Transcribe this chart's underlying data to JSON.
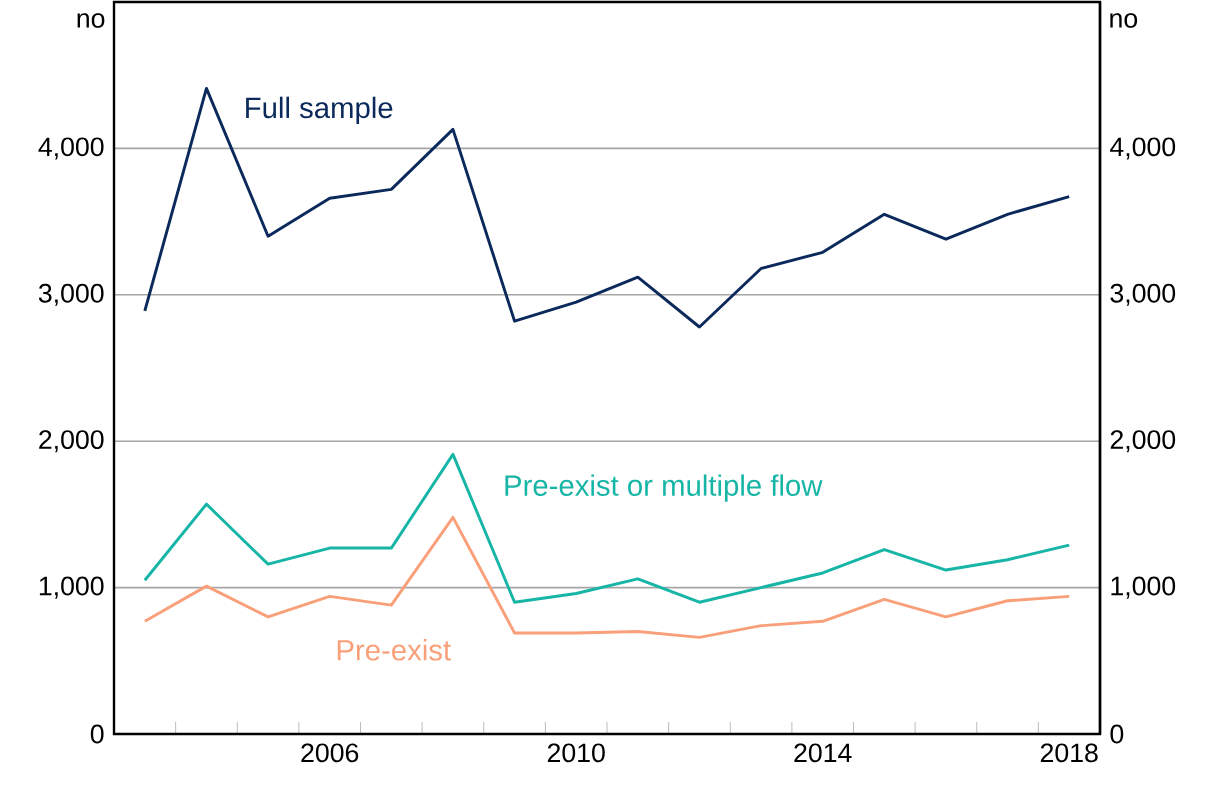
{
  "chart_data": {
    "type": "line",
    "x": [
      2003.5,
      2004.5,
      2005.5,
      2006.5,
      2007.5,
      2008.5,
      2009.5,
      2010.5,
      2011.5,
      2012.5,
      2013.5,
      2014.5,
      2015.5,
      2016.5,
      2017.5,
      2018.5
    ],
    "series": [
      {
        "name": "Full sample",
        "color": "#0b2a5b",
        "values": [
          2890,
          4410,
          3400,
          3660,
          3720,
          4130,
          2820,
          2950,
          3120,
          2780,
          3180,
          3290,
          3550,
          3380,
          3550,
          3670
        ]
      },
      {
        "name": "Pre-exist or multiple flow",
        "color": "#16b5a6",
        "values": [
          1050,
          1570,
          1160,
          1270,
          1270,
          1910,
          900,
          960,
          1060,
          900,
          1000,
          1100,
          1260,
          1120,
          1190,
          1290
        ]
      },
      {
        "name": "Pre-exist",
        "color": "#f9a07a",
        "values": [
          770,
          1010,
          800,
          940,
          880,
          1480,
          690,
          690,
          700,
          660,
          740,
          770,
          920,
          800,
          910,
          940
        ]
      }
    ],
    "xlim": [
      2003,
      2019
    ],
    "xticks": [
      {
        "value": 2004,
        "label": null
      },
      {
        "value": 2005,
        "label": null
      },
      {
        "value": 2006,
        "label": null
      },
      {
        "value": 2006.5,
        "label": "2006"
      },
      {
        "value": 2007,
        "label": null
      },
      {
        "value": 2008,
        "label": null
      },
      {
        "value": 2009,
        "label": null
      },
      {
        "value": 2010,
        "label": null
      },
      {
        "value": 2010.5,
        "label": "2010"
      },
      {
        "value": 2011,
        "label": null
      },
      {
        "value": 2012,
        "label": null
      },
      {
        "value": 2013,
        "label": null
      },
      {
        "value": 2014,
        "label": null
      },
      {
        "value": 2014.5,
        "label": "2014"
      },
      {
        "value": 2015,
        "label": null
      },
      {
        "value": 2016,
        "label": null
      },
      {
        "value": 2017,
        "label": null
      },
      {
        "value": 2018,
        "label": null
      },
      {
        "value": 2018.5,
        "label": "2018"
      }
    ],
    "ylim": [
      0,
      5000
    ],
    "yticks": [
      0,
      {
        "value": 1000,
        "label": "1,000"
      },
      {
        "value": 2000,
        "label": "2,000"
      },
      {
        "value": 3000,
        "label": "3,000"
      },
      {
        "value": 4000,
        "label": "4,000"
      }
    ],
    "y2lim": [
      0,
      5000
    ],
    "y2ticks": [
      0,
      {
        "value": 1000,
        "label": "1,000"
      },
      {
        "value": 2000,
        "label": "2,000"
      },
      {
        "value": 3000,
        "label": "3,000"
      },
      {
        "value": 4000,
        "label": "4,000"
      }
    ],
    "ylabel": "no",
    "y2label": "no",
    "grid": "y",
    "marker": "none",
    "line_style": "solid"
  }
}
